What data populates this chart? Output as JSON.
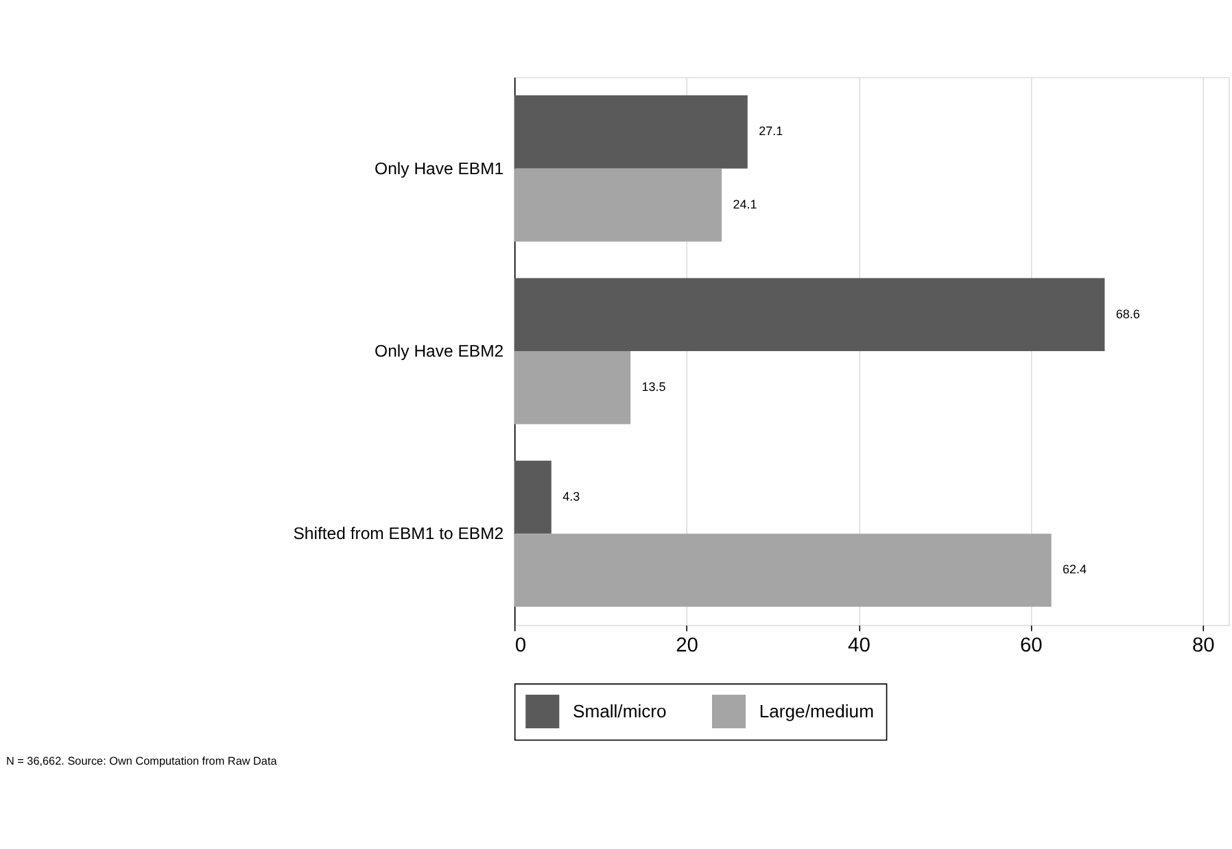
{
  "chart_data": {
    "type": "bar",
    "orientation": "horizontal",
    "categories": [
      "Only Have EBM1",
      "Only Have EBM2",
      "Shifted from EBM1 to EBM2"
    ],
    "series": [
      {
        "name": "Small/micro",
        "color": "#5a5a5a",
        "values": [
          27.1,
          68.6,
          4.3
        ]
      },
      {
        "name": "Large/medium",
        "color": "#a5a5a5",
        "values": [
          24.1,
          13.5,
          62.4
        ]
      }
    ],
    "xlim": [
      0,
      83
    ],
    "xticks": [
      0,
      20,
      40,
      60,
      80
    ],
    "grid": "x",
    "legend": "bottom",
    "data_labels": true,
    "annotations": [
      "N = 36,662. Source: Own Computation from Raw Data"
    ]
  }
}
